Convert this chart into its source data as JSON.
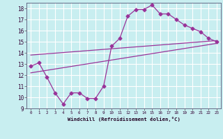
{
  "xlabel": "Windchill (Refroidissement éolien,°C)",
  "bg_color": "#c8eef0",
  "line_color": "#993399",
  "grid_color": "#ffffff",
  "xlim": [
    -0.5,
    23.5
  ],
  "ylim": [
    9,
    18.5
  ],
  "xticks": [
    0,
    1,
    2,
    3,
    4,
    5,
    6,
    7,
    8,
    9,
    10,
    11,
    12,
    13,
    14,
    15,
    16,
    17,
    18,
    19,
    20,
    21,
    22,
    23
  ],
  "yticks": [
    9,
    10,
    11,
    12,
    13,
    14,
    15,
    16,
    17,
    18
  ],
  "line1_x": [
    0,
    1,
    2,
    3,
    4,
    5,
    6,
    7,
    8,
    9,
    10,
    11,
    12,
    13,
    14,
    15,
    16,
    17,
    18,
    19,
    20,
    21,
    22,
    23
  ],
  "line1_y": [
    12.8,
    13.1,
    11.8,
    10.4,
    9.4,
    10.4,
    10.4,
    9.9,
    9.9,
    11.0,
    14.6,
    15.3,
    17.3,
    17.9,
    17.9,
    18.3,
    17.5,
    17.5,
    17.0,
    16.5,
    16.2,
    15.9,
    15.3,
    15.0
  ],
  "line2_x": [
    0,
    23
  ],
  "line2_y": [
    13.8,
    15.1
  ],
  "line3_x": [
    0,
    23
  ],
  "line3_y": [
    12.2,
    14.85
  ]
}
